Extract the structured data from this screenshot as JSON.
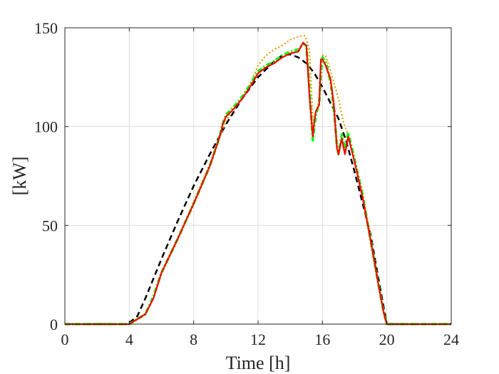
{
  "chart_data": {
    "type": "line",
    "title": "",
    "xlabel": "Time [h]",
    "ylabel": "[kW]",
    "xlim": [
      0,
      24
    ],
    "ylim": [
      0,
      150
    ],
    "xticks": [
      0,
      4,
      8,
      12,
      16,
      20,
      24
    ],
    "yticks": [
      0,
      50,
      100,
      150
    ],
    "grid": true,
    "legend": "none",
    "series": [
      {
        "color": "#000000",
        "style": "dashed",
        "x": [
          0,
          3.9,
          4.5,
          5,
          6,
          7,
          8,
          9,
          10,
          11,
          12,
          13,
          13.5,
          14,
          14.5,
          15,
          15.5,
          16,
          17,
          17.5,
          18,
          19,
          19.5,
          20,
          24
        ],
        "y": [
          0,
          0,
          4,
          13,
          33,
          52,
          70,
          86,
          101,
          114,
          125,
          133,
          136,
          136.5,
          135,
          132,
          127,
          120,
          104,
          92,
          77,
          45,
          22,
          0,
          0
        ]
      },
      {
        "color": "#e69f00",
        "style": "dotted",
        "x": [
          0,
          4,
          5,
          5.5,
          6,
          7,
          8,
          9,
          9.5,
          10,
          10.5,
          11,
          11.5,
          12,
          12.5,
          13,
          13.5,
          14,
          14.5,
          14.9,
          15,
          15.2,
          15.4,
          15.5,
          15.7,
          15.9,
          16,
          16.2,
          16.5,
          17,
          17.3,
          17.6,
          18,
          18.5,
          19,
          19.5,
          19.8,
          20,
          24
        ],
        "y": [
          0,
          0,
          5,
          14,
          26,
          43,
          62,
          81,
          92,
          103,
          109,
          114,
          121,
          131,
          136,
          139,
          141,
          144,
          145.5,
          146,
          144,
          138,
          106,
          102,
          110,
          120,
          136,
          136,
          128,
          114,
          102,
          96,
          84,
          67,
          44,
          20,
          7,
          0,
          0
        ]
      },
      {
        "color": "#00ff00",
        "style": "dash-dot",
        "x": [
          0,
          4,
          5,
          5.5,
          6,
          7,
          8,
          9,
          9.5,
          9.7,
          9.8,
          10,
          10.5,
          11,
          11.5,
          12,
          12.5,
          13,
          13.5,
          14,
          14.5,
          14.8,
          15,
          15.2,
          15.4,
          15.5,
          15.6,
          15.8,
          15.9,
          16,
          16.2,
          16.5,
          16.7,
          16.9,
          17,
          17.2,
          17.4,
          17.6,
          18,
          18.5,
          19,
          19.5,
          19.8,
          20,
          24
        ],
        "y": [
          0,
          0,
          5,
          14,
          26,
          43,
          61,
          80,
          92,
          98,
          101,
          106,
          110,
          115,
          121,
          128,
          131,
          133,
          136,
          138,
          139,
          142,
          141,
          118,
          93,
          100,
          106,
          112,
          127,
          135,
          133,
          123,
          110,
          90,
          86,
          96,
          88,
          97,
          83,
          65,
          42,
          19,
          6,
          0,
          0
        ]
      },
      {
        "color": "#ff0000",
        "style": "solid",
        "x": [
          0,
          4,
          5,
          5.5,
          6,
          7,
          8,
          9,
          9.5,
          9.7,
          9.8,
          10,
          10.5,
          11,
          11.5,
          12,
          12.5,
          13,
          13.5,
          14,
          14.5,
          14.8,
          15,
          15.2,
          15.4,
          15.5,
          15.6,
          15.8,
          15.9,
          16,
          16.2,
          16.5,
          16.7,
          16.9,
          17,
          17.2,
          17.4,
          17.6,
          18,
          18.5,
          19,
          19.5,
          19.8,
          20,
          24
        ],
        "y": [
          0,
          0,
          5,
          13,
          26,
          43,
          61,
          80,
          92,
          97,
          101,
          105,
          109,
          114,
          120,
          127,
          130,
          132,
          135,
          137,
          138,
          142.5,
          141,
          115,
          95,
          103,
          108,
          111,
          134,
          134,
          131,
          124,
          112,
          89,
          86,
          94,
          86,
          95,
          82,
          64,
          42,
          19,
          6,
          0,
          0
        ]
      }
    ]
  }
}
